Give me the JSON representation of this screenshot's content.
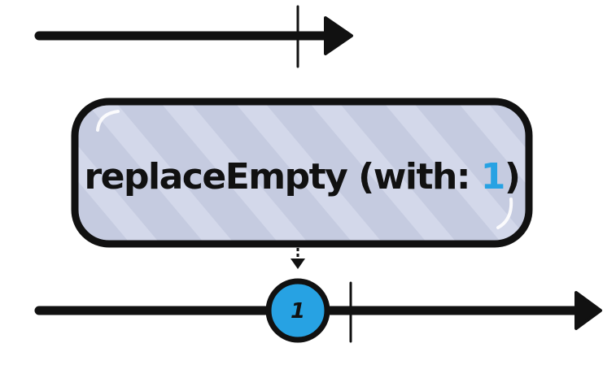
{
  "operator": {
    "name": "replaceEmpty",
    "args_open": " (with: ",
    "value": "1",
    "args_close": ")"
  },
  "input_timeline": {
    "values": [],
    "completes": true
  },
  "output_timeline": {
    "values": [
      "1"
    ],
    "completes": true
  },
  "colors": {
    "stroke": "#111111",
    "box_fill": "#c5cbe0",
    "box_stripe": "#d6dbeb",
    "marble_fill": "#27a2e3",
    "accent_text": "#27a2e3"
  }
}
